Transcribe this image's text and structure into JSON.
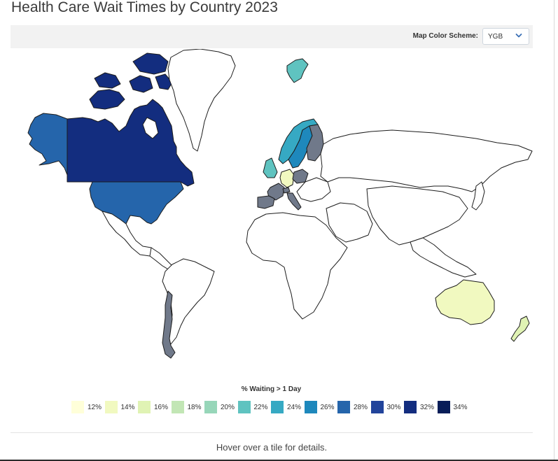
{
  "title": "Health Care Wait Times by Country 2023",
  "toolbar": {
    "scheme_label": "Map Color Scheme:",
    "scheme_value": "YGB",
    "scheme_icon": "chevron-down-icon",
    "chevron_color": "#3a6fb5"
  },
  "colors": {
    "no_data": "#ffffff",
    "no_bin": "#70798a",
    "border": "#1c1c1c"
  },
  "legend": {
    "title": "% Waiting > 1 Day",
    "bins": [
      {
        "label": "12%",
        "color": "#ffffd9"
      },
      {
        "label": "14%",
        "color": "#f1f9c0"
      },
      {
        "label": "16%",
        "color": "#e0f3b4"
      },
      {
        "label": "18%",
        "color": "#c2e6b5"
      },
      {
        "label": "20%",
        "color": "#97d6b9"
      },
      {
        "label": "22%",
        "color": "#5fc3c0"
      },
      {
        "label": "24%",
        "color": "#36a9c3"
      },
      {
        "label": "26%",
        "color": "#1e88bc"
      },
      {
        "label": "28%",
        "color": "#2565ab"
      },
      {
        "label": "30%",
        "color": "#22449b"
      },
      {
        "label": "32%",
        "color": "#132d7f"
      },
      {
        "label": "34%",
        "color": "#081d58"
      }
    ]
  },
  "map": {
    "countries": [
      {
        "name": "Canada",
        "fill": "#132d7f"
      },
      {
        "name": "United States",
        "fill": "#2565ab"
      },
      {
        "name": "Alaska",
        "fill": "#2565ab"
      },
      {
        "name": "Greenland",
        "fill": "#ffffff"
      },
      {
        "name": "Mexico",
        "fill": "#ffffff"
      },
      {
        "name": "Central America",
        "fill": "#ffffff"
      },
      {
        "name": "South America",
        "fill": "#ffffff"
      },
      {
        "name": "Chile",
        "fill": "#70798a"
      },
      {
        "name": "United Kingdom",
        "fill": "#5fc3c0"
      },
      {
        "name": "Svalbard",
        "fill": "#5fc3c0"
      },
      {
        "name": "Norway",
        "fill": "#36a9c3"
      },
      {
        "name": "Sweden",
        "fill": "#1e88bc"
      },
      {
        "name": "Finland",
        "fill": "#70798a"
      },
      {
        "name": "Germany",
        "fill": "#f1f9c0"
      },
      {
        "name": "Poland",
        "fill": "#70798a"
      },
      {
        "name": "France",
        "fill": "#70798a"
      },
      {
        "name": "Spain",
        "fill": "#70798a"
      },
      {
        "name": "Italy",
        "fill": "#70798a"
      },
      {
        "name": "Switzerland",
        "fill": "#70798a"
      },
      {
        "name": "Europe Other",
        "fill": "#ffffff"
      },
      {
        "name": "Russia",
        "fill": "#ffffff"
      },
      {
        "name": "Africa",
        "fill": "#ffffff"
      },
      {
        "name": "Middle East",
        "fill": "#ffffff"
      },
      {
        "name": "Asia",
        "fill": "#ffffff"
      },
      {
        "name": "Southeast Asia",
        "fill": "#ffffff"
      },
      {
        "name": "Japan",
        "fill": "#ffffff"
      },
      {
        "name": "Australia",
        "fill": "#f1f9c0"
      },
      {
        "name": "New Zealand",
        "fill": "#e0f3b4"
      }
    ]
  },
  "detail_message": "Hover over a tile for details."
}
